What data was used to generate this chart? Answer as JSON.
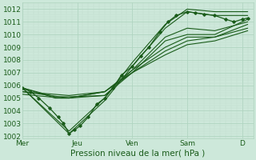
{
  "xlabel": "Pression niveau de la mer( hPa )",
  "ylim": [
    1001.8,
    1012.5
  ],
  "xlim": [
    0,
    4.2
  ],
  "yticks": [
    1002,
    1003,
    1004,
    1005,
    1006,
    1007,
    1008,
    1009,
    1010,
    1011,
    1012
  ],
  "xtick_pos": [
    0,
    1,
    2,
    3,
    4
  ],
  "xtick_labels": [
    "Mer",
    "Jeu",
    "Ven",
    "Sam",
    "D"
  ],
  "bg_color": "#cde8da",
  "grid_major_color": "#b0d4c0",
  "grid_minor_color": "#c2dece",
  "line_color": "#1a5c1a",
  "lines": [
    [
      [
        0.0,
        1005.8
      ],
      [
        0.85,
        1002.2
      ],
      [
        1.5,
        1004.8
      ],
      [
        2.0,
        1007.5
      ],
      [
        2.6,
        1010.5
      ],
      [
        3.0,
        1011.8
      ],
      [
        3.5,
        1011.5
      ],
      [
        4.1,
        1011.5
      ]
    ],
    [
      [
        0.0,
        1005.8
      ],
      [
        0.85,
        1002.4
      ],
      [
        1.5,
        1005.0
      ],
      [
        2.0,
        1007.8
      ],
      [
        2.6,
        1010.8
      ],
      [
        3.0,
        1012.0
      ],
      [
        3.5,
        1011.8
      ],
      [
        4.1,
        1011.8
      ]
    ],
    [
      [
        0.0,
        1005.8
      ],
      [
        0.6,
        1005.0
      ],
      [
        0.85,
        1005.0
      ],
      [
        1.5,
        1005.2
      ],
      [
        2.0,
        1007.2
      ],
      [
        2.6,
        1009.8
      ],
      [
        3.0,
        1010.5
      ],
      [
        3.5,
        1010.3
      ],
      [
        4.1,
        1011.0
      ]
    ],
    [
      [
        0.0,
        1005.8
      ],
      [
        0.6,
        1005.1
      ],
      [
        0.85,
        1005.1
      ],
      [
        1.5,
        1005.2
      ],
      [
        2.0,
        1007.0
      ],
      [
        2.6,
        1009.5
      ],
      [
        3.0,
        1010.0
      ],
      [
        3.5,
        1010.0
      ],
      [
        4.1,
        1011.2
      ]
    ],
    [
      [
        0.0,
        1005.5
      ],
      [
        0.85,
        1005.0
      ],
      [
        1.5,
        1005.5
      ],
      [
        2.0,
        1007.2
      ],
      [
        2.6,
        1009.0
      ],
      [
        3.0,
        1009.8
      ],
      [
        3.5,
        1009.8
      ],
      [
        4.1,
        1010.5
      ]
    ],
    [
      [
        0.0,
        1005.5
      ],
      [
        0.85,
        1005.2
      ],
      [
        1.5,
        1005.5
      ],
      [
        2.0,
        1007.0
      ],
      [
        2.6,
        1008.7
      ],
      [
        3.0,
        1009.5
      ],
      [
        3.5,
        1009.8
      ],
      [
        4.1,
        1010.8
      ]
    ],
    [
      [
        0.0,
        1005.3
      ],
      [
        0.7,
        1005.0
      ],
      [
        0.85,
        1005.0
      ],
      [
        1.5,
        1005.5
      ],
      [
        2.0,
        1007.0
      ],
      [
        2.6,
        1008.4
      ],
      [
        3.0,
        1009.2
      ],
      [
        3.5,
        1009.5
      ],
      [
        4.1,
        1010.3
      ]
    ]
  ],
  "dotted_line": [
    [
      0.0,
      1005.8
    ],
    [
      0.15,
      1005.5
    ],
    [
      0.3,
      1005.0
    ],
    [
      0.5,
      1004.2
    ],
    [
      0.65,
      1003.5
    ],
    [
      0.75,
      1003.0
    ],
    [
      0.85,
      1002.2
    ],
    [
      0.95,
      1002.5
    ],
    [
      1.05,
      1002.8
    ],
    [
      1.2,
      1003.5
    ],
    [
      1.35,
      1004.5
    ],
    [
      1.5,
      1005.0
    ],
    [
      1.65,
      1005.8
    ],
    [
      1.8,
      1006.8
    ],
    [
      2.0,
      1007.5
    ],
    [
      2.15,
      1008.3
    ],
    [
      2.3,
      1009.0
    ],
    [
      2.5,
      1010.2
    ],
    [
      2.65,
      1011.0
    ],
    [
      2.8,
      1011.5
    ],
    [
      3.0,
      1011.8
    ],
    [
      3.15,
      1011.7
    ],
    [
      3.3,
      1011.6
    ],
    [
      3.5,
      1011.5
    ],
    [
      3.7,
      1011.2
    ],
    [
      3.85,
      1011.0
    ],
    [
      4.0,
      1011.2
    ],
    [
      4.1,
      1011.3
    ]
  ],
  "ylabel_fontsize": 6.5,
  "xlabel_fontsize": 7.5,
  "tick_fontsize": 6.5
}
